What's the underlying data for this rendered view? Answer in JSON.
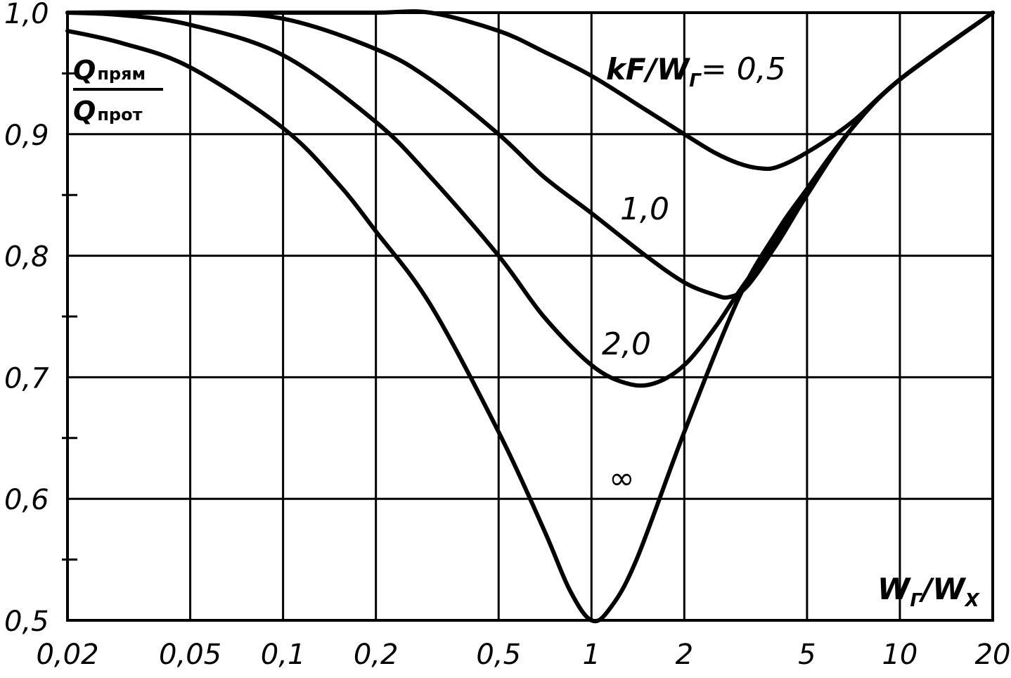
{
  "chart_data": {
    "type": "line",
    "xscale": "log",
    "xlim": [
      0.02,
      20
    ],
    "ylim": [
      0.5,
      1.0
    ],
    "grid": true,
    "x_ticks": [
      "0,02",
      "0,05",
      "0,1",
      "0,2",
      "0,5",
      "1",
      "2",
      "5",
      "10",
      "20"
    ],
    "y_ticks": [
      "0,5",
      "0,6",
      "0,7",
      "0,8",
      "0,9",
      "1,0"
    ],
    "ylabel": {
      "numerator": "Q",
      "numerator_sub": "прям",
      "denominator": "Q",
      "denominator_sub": "прот"
    },
    "xlabel": {
      "main1": "W",
      "sub1": "Г",
      "sep": "/",
      "main2": "W",
      "sub2": "X"
    },
    "param_label": {
      "text": "kF/W",
      "sub": "Г",
      "value": "= 0,5"
    },
    "series": [
      {
        "name": "0,5",
        "x": [
          0.02,
          0.1,
          0.2,
          0.3,
          0.5,
          0.7,
          1.0,
          1.5,
          2.0,
          2.5,
          3.0,
          3.5,
          4.0,
          5.0,
          7.0,
          10.0,
          20.0
        ],
        "y": [
          1.0,
          1.0,
          1.0,
          1.0,
          0.985,
          0.968,
          0.948,
          0.92,
          0.9,
          0.885,
          0.876,
          0.872,
          0.873,
          0.885,
          0.91,
          0.945,
          1.0
        ]
      },
      {
        "name": "1,0",
        "x": [
          0.02,
          0.05,
          0.1,
          0.2,
          0.3,
          0.5,
          0.7,
          1.0,
          1.5,
          2.0,
          2.5,
          2.8,
          3.2,
          4.0,
          5.0,
          7.0,
          10.0,
          20.0
        ],
        "y": [
          1.0,
          1.0,
          0.995,
          0.97,
          0.945,
          0.9,
          0.865,
          0.835,
          0.8,
          0.778,
          0.768,
          0.766,
          0.775,
          0.81,
          0.85,
          0.905,
          0.945,
          1.0
        ]
      },
      {
        "name": "2,0",
        "x": [
          0.02,
          0.03,
          0.05,
          0.1,
          0.2,
          0.3,
          0.5,
          0.7,
          1.0,
          1.3,
          1.6,
          2.0,
          2.5,
          3.0,
          4.0,
          5.0,
          7.0,
          10.0,
          20.0
        ],
        "y": [
          1.0,
          0.998,
          0.99,
          0.965,
          0.91,
          0.865,
          0.8,
          0.75,
          0.71,
          0.695,
          0.695,
          0.71,
          0.74,
          0.77,
          0.815,
          0.855,
          0.905,
          0.945,
          1.0
        ]
      },
      {
        "name": "∞",
        "x": [
          0.02,
          0.03,
          0.05,
          0.1,
          0.15,
          0.2,
          0.3,
          0.5,
          0.7,
          0.85,
          1.0,
          1.15,
          1.4,
          2.0,
          3.0,
          4.0,
          5.0,
          7.0,
          10.0,
          20.0
        ],
        "y": [
          0.985,
          0.975,
          0.955,
          0.905,
          0.86,
          0.82,
          0.76,
          0.655,
          0.575,
          0.525,
          0.5,
          0.51,
          0.55,
          0.655,
          0.765,
          0.82,
          0.855,
          0.905,
          0.945,
          1.0
        ]
      }
    ],
    "curve_labels": [
      "1,0",
      "2,0",
      "∞"
    ]
  }
}
